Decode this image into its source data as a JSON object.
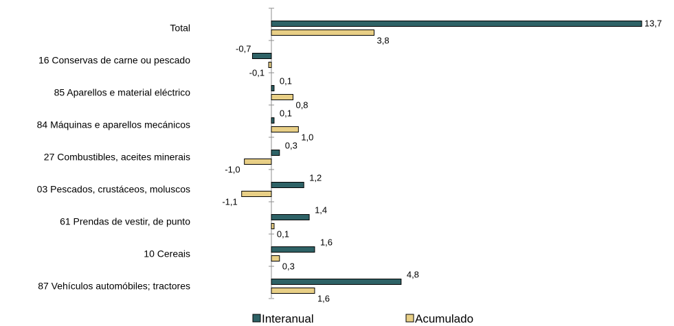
{
  "chart_data": {
    "type": "bar",
    "orientation": "horizontal",
    "categories": [
      "Total",
      "16 Conservas de carne ou pescado",
      "85 Aparellos e material eléctrico",
      "84 Máquinas e aparellos mecánicos",
      "27 Combustibles, aceites minerais",
      "03 Pescados, crustáceos, moluscos",
      "61 Prendas de vestir, de punto",
      "10 Cereais",
      "87 Vehículos automóbiles; tractores"
    ],
    "series": [
      {
        "name": "Interanual",
        "color": "#2e6266",
        "values": [
          13.7,
          -0.7,
          0.1,
          0.1,
          0.3,
          1.2,
          1.4,
          1.6,
          4.8
        ],
        "labels": [
          "13,7",
          "-0,7",
          "0,1",
          "0,1",
          "0,3",
          "1,2",
          "1,4",
          "1,6",
          "4,8"
        ]
      },
      {
        "name": "Acumulado",
        "color": "#e8cf86",
        "values": [
          3.8,
          -0.1,
          0.8,
          1.0,
          -1.0,
          -1.1,
          0.1,
          0.3,
          1.6
        ],
        "labels": [
          "3,8",
          "-0,1",
          "0,8",
          "1,0",
          "-1,0",
          "-1,1",
          "0,1",
          "0,3",
          "1,6"
        ]
      }
    ],
    "legend_position": "bottom",
    "grid": false
  }
}
